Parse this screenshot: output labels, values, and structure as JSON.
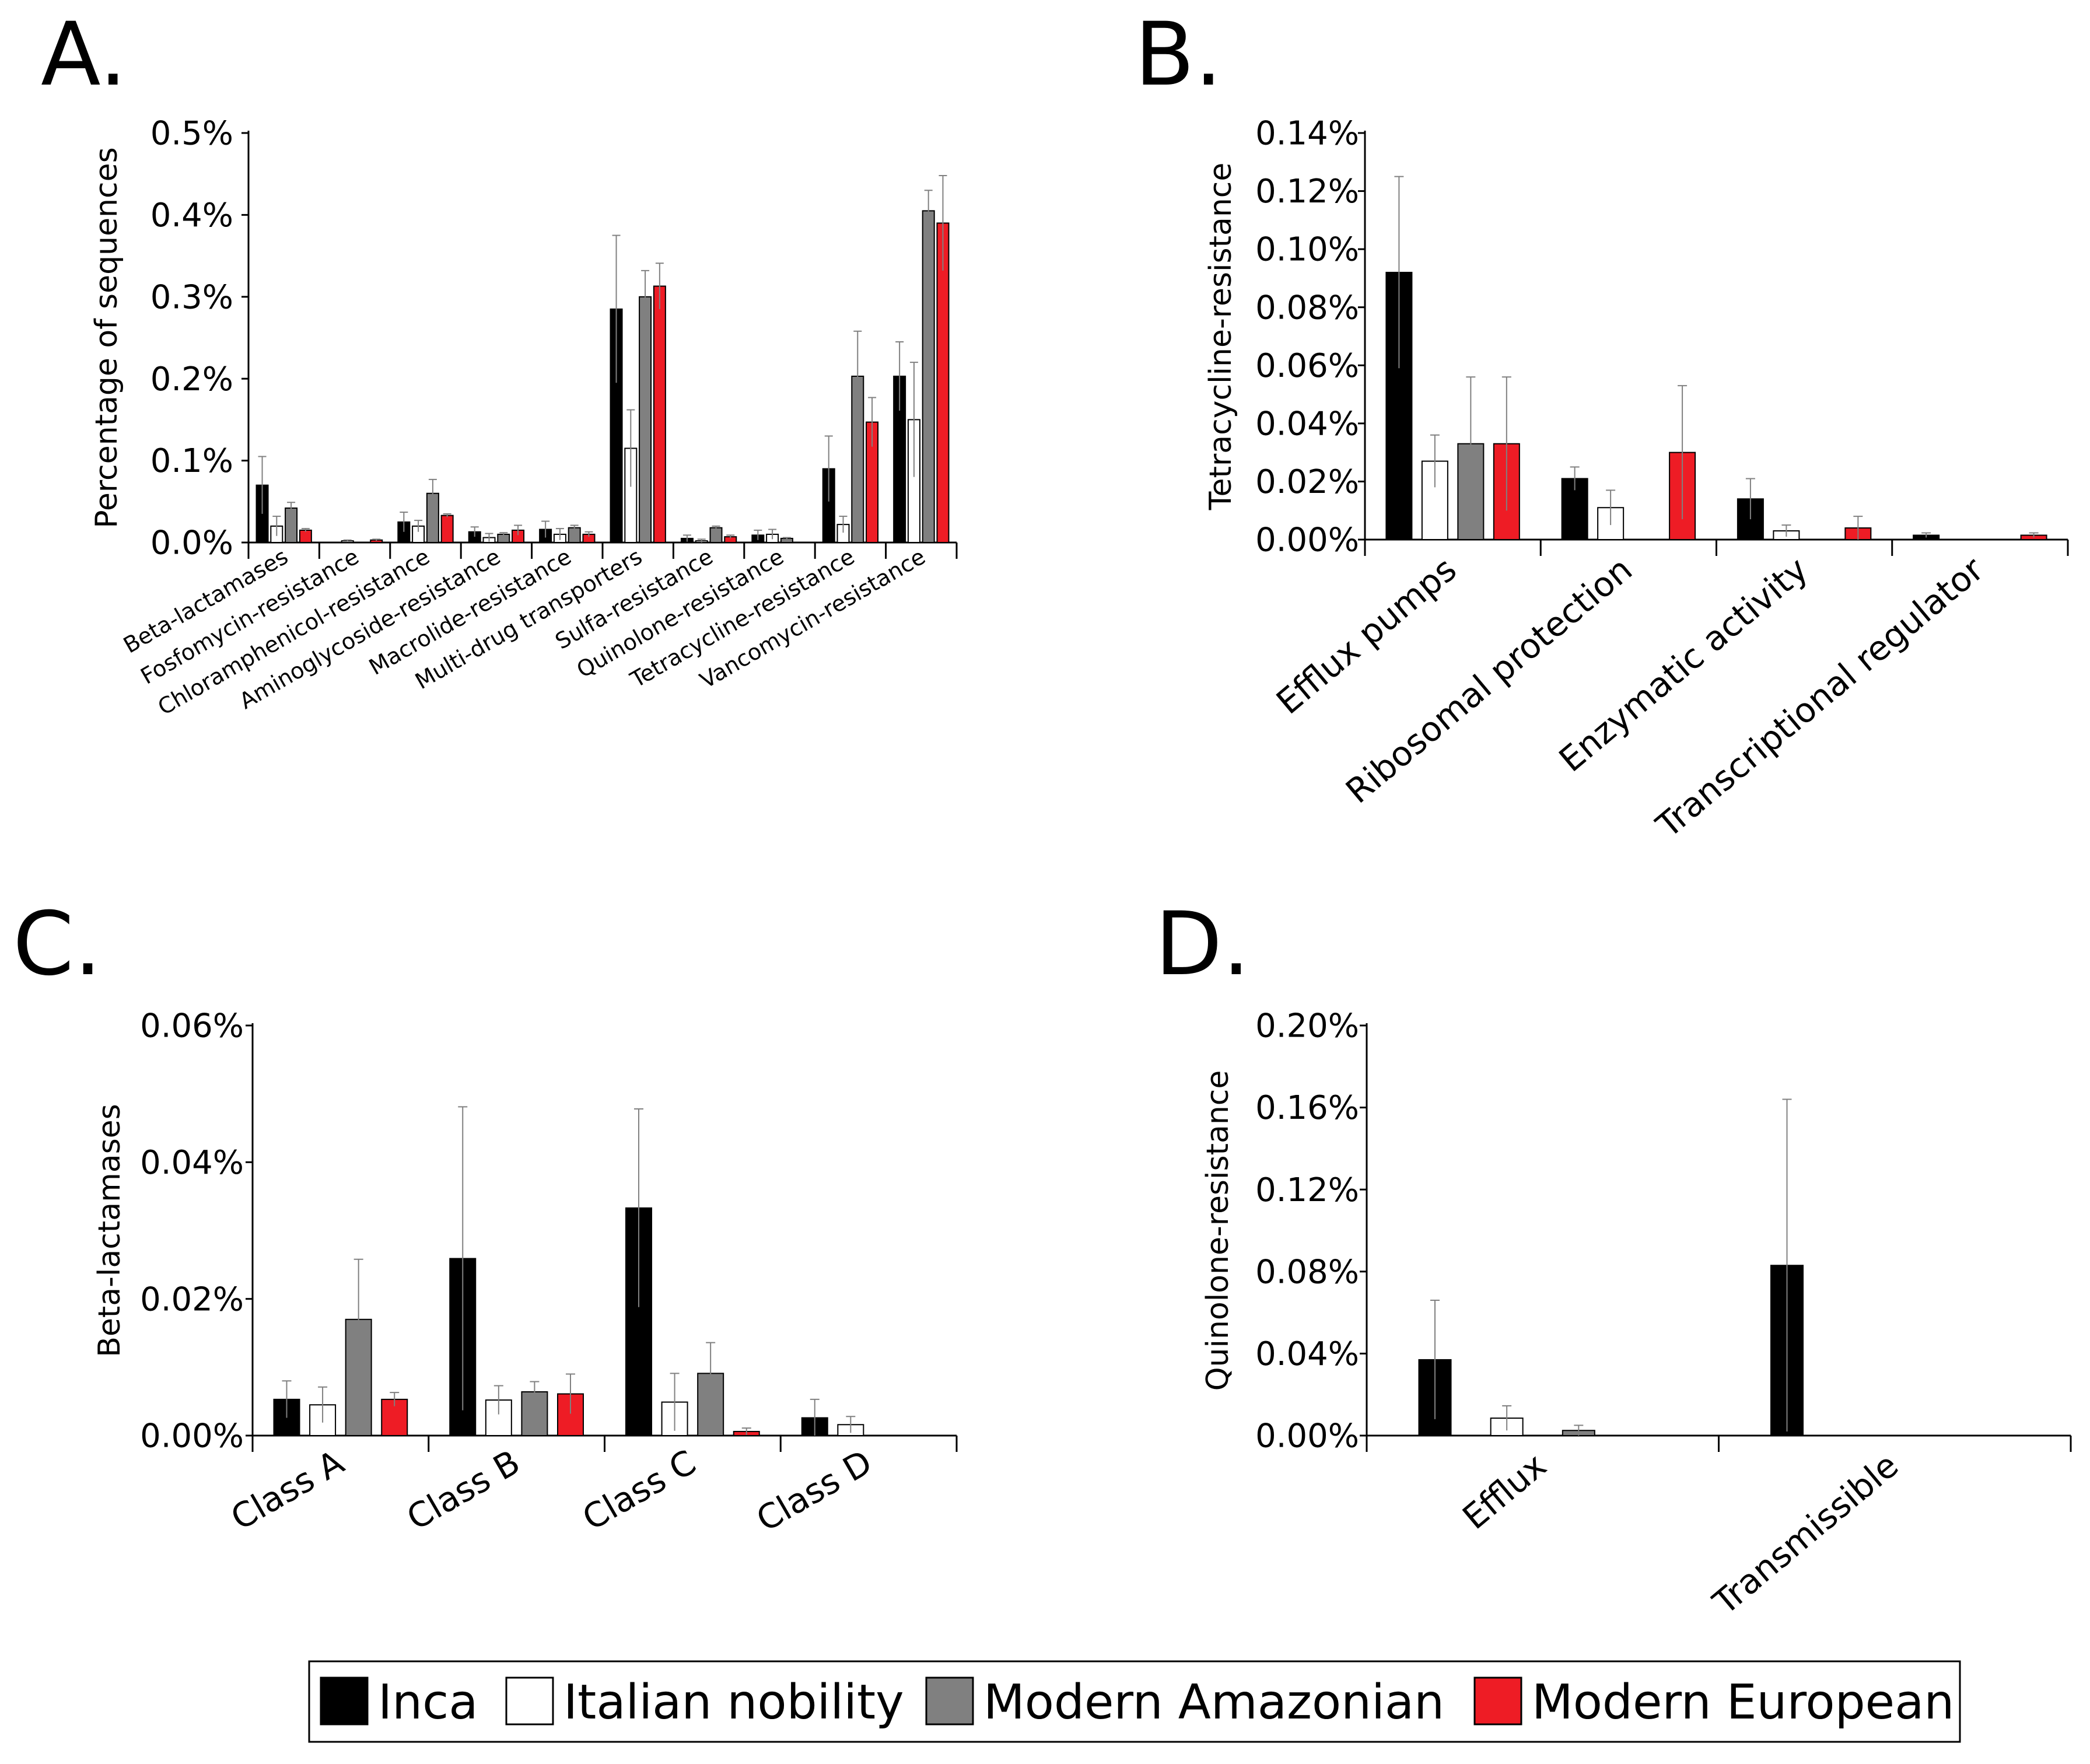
{
  "colors": {
    "Inca": "#000000",
    "Italian nobility": "#ffffff",
    "Modern Amazonian": "#808080",
    "Modern European": "#ee1c25",
    "axis": "#000000",
    "error_bar": "#808080"
  },
  "legend": {
    "entries": [
      "Inca",
      "Italian nobility",
      "Modern Amazonian",
      "Modern European"
    ]
  },
  "chart_data": [
    {
      "panel": "A.",
      "type": "bar",
      "title": "",
      "ylabel": "Percentage of sequences",
      "ylim": [
        0,
        0.5
      ],
      "yticks": [
        "0.0%",
        "0.1%",
        "0.2%",
        "0.3%",
        "0.4%",
        "0.5%"
      ],
      "categories": [
        "Beta-lactamases",
        "Fosfomycin-resistance",
        "Chloramphenicol-resistance",
        "Aminoglycoside-resistance",
        "Macrolide-resistance",
        "Multi-drug transporters",
        "Sulfa-resistance",
        "Quinolone-resistance",
        "Tetracycline-resistance",
        "Vancomycin-resistance"
      ],
      "series": [
        {
          "name": "Inca",
          "values": [
            0.07,
            0.0,
            0.025,
            0.013,
            0.016,
            0.285,
            0.005,
            0.009,
            0.09,
            0.203
          ],
          "errors": [
            0.035,
            0,
            0.012,
            0.006,
            0.01,
            0.09,
            0.004,
            0.006,
            0.04,
            0.042
          ]
        },
        {
          "name": "Italian nobility",
          "values": [
            0.02,
            0.002,
            0.02,
            0.006,
            0.01,
            0.115,
            0.002,
            0.01,
            0.022,
            0.15
          ],
          "errors": [
            0.012,
            0.001,
            0.007,
            0.005,
            0.007,
            0.047,
            0.002,
            0.006,
            0.01,
            0.07
          ]
        },
        {
          "name": "Modern Amazonian",
          "values": [
            0.042,
            0.0,
            0.06,
            0.01,
            0.018,
            0.3,
            0.018,
            0.005,
            0.203,
            0.405
          ],
          "errors": [
            0.007,
            0,
            0.017,
            0.002,
            0.003,
            0.032,
            0.002,
            0.001,
            0.055,
            0.025
          ]
        },
        {
          "name": "Modern European",
          "values": [
            0.015,
            0.003,
            0.033,
            0.015,
            0.01,
            0.313,
            0.007,
            0.0,
            0.147,
            0.39
          ],
          "errors": [
            0.002,
            0.001,
            0.002,
            0.006,
            0.003,
            0.028,
            0.002,
            0,
            0.03,
            0.058
          ]
        }
      ]
    },
    {
      "panel": "B.",
      "type": "bar",
      "title": "",
      "ylabel": "Tetracycline-resistance",
      "ylim": [
        0,
        0.14
      ],
      "yticks": [
        "0.00%",
        "0.02%",
        "0.04%",
        "0.06%",
        "0.08%",
        "0.10%",
        "0.12%",
        "0.14%"
      ],
      "categories": [
        "Efflux pumps",
        "Ribosomal protection",
        "Enzymatic activity",
        "Transcriptional regulator"
      ],
      "series": [
        {
          "name": "Inca",
          "values": [
            0.092,
            0.021,
            0.014,
            0.0015
          ],
          "errors": [
            0.033,
            0.004,
            0.007,
            0.0008
          ]
        },
        {
          "name": "Italian nobility",
          "values": [
            0.027,
            0.011,
            0.003,
            0.0
          ],
          "errors": [
            0.009,
            0.006,
            0.002,
            0
          ]
        },
        {
          "name": "Modern Amazonian",
          "values": [
            0.033,
            0.0,
            0.0,
            0.0
          ],
          "errors": [
            0.023,
            0,
            0,
            0
          ]
        },
        {
          "name": "Modern European",
          "values": [
            0.033,
            0.03,
            0.004,
            0.0015
          ],
          "errors": [
            0.023,
            0.023,
            0.004,
            0.0008
          ]
        }
      ]
    },
    {
      "panel": "C.",
      "type": "bar",
      "title": "",
      "ylabel": "Beta-lactamases",
      "ylim": [
        0,
        0.06
      ],
      "yticks": [
        "0.00%",
        "0.02%",
        "0.04%",
        "0.06%"
      ],
      "categories": [
        "Class A",
        "Class B",
        "Class C",
        "Class D"
      ],
      "series": [
        {
          "name": "Inca",
          "values": [
            0.0053,
            0.0259,
            0.0333,
            0.0026
          ],
          "errors": [
            0.0027,
            0.0222,
            0.0145,
            0.0027
          ]
        },
        {
          "name": "Italian nobility",
          "values": [
            0.0045,
            0.0052,
            0.0049,
            0.0016
          ],
          "errors": [
            0.0026,
            0.0021,
            0.0042,
            0.0012
          ]
        },
        {
          "name": "Modern Amazonian",
          "values": [
            0.017,
            0.0064,
            0.0091,
            0.0
          ],
          "errors": [
            0.0088,
            0.0015,
            0.0045,
            0
          ]
        },
        {
          "name": "Modern European",
          "values": [
            0.0053,
            0.0061,
            0.0006,
            0.0
          ],
          "errors": [
            0.001,
            0.0029,
            0.0005,
            0
          ]
        }
      ]
    },
    {
      "panel": "D.",
      "type": "bar",
      "title": "",
      "ylabel": "Quinolone-resistance",
      "ylim": [
        0,
        0.2
      ],
      "yticks": [
        "0.00%",
        "0.04%",
        "0.08%",
        "0.12%",
        "0.16%",
        "0.20%"
      ],
      "categories": [
        "Efflux",
        "Transmissible"
      ],
      "series": [
        {
          "name": "Inca",
          "values": [
            0.037,
            0.083
          ],
          "errors": [
            0.029,
            0.081
          ]
        },
        {
          "name": "Italian nobility",
          "values": [
            0.0085,
            0.0
          ],
          "errors": [
            0.006,
            0
          ]
        },
        {
          "name": "Modern Amazonian",
          "values": [
            0.0025,
            0.0
          ],
          "errors": [
            0.0025,
            0
          ]
        },
        {
          "name": "Modern European",
          "values": [
            0.0,
            0.0
          ],
          "errors": [
            0,
            0
          ]
        }
      ]
    }
  ]
}
